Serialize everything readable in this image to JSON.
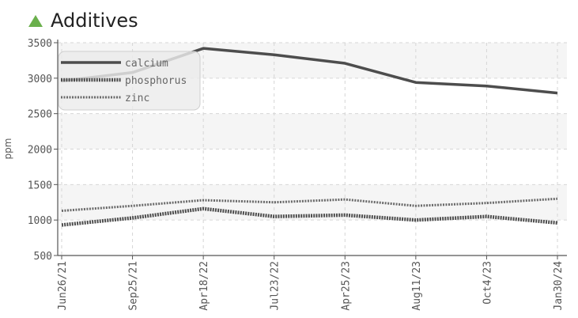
{
  "header": {
    "title": "Additives",
    "arrow_color": "#6ab04c"
  },
  "chart_data": {
    "type": "line",
    "title": "Additives",
    "xlabel": "",
    "ylabel": "ppm",
    "ylim": [
      500,
      3500
    ],
    "yticks": [
      500,
      1000,
      1500,
      2000,
      2500,
      3000,
      3500
    ],
    "categories": [
      "Jun26/21",
      "Sep25/21",
      "Apr18/22",
      "Jul23/22",
      "Apr25/23",
      "Aug11/23",
      "Oct4/23",
      "Jan30/24"
    ],
    "grid": true,
    "legend_position": "top-left",
    "series": [
      {
        "name": "calcium",
        "color": "#4d4d4d",
        "style": "solid",
        "values": [
          2960,
          3080,
          3420,
          3330,
          3210,
          2940,
          2890,
          2790
        ]
      },
      {
        "name": "phosphorus",
        "color": "#4d4d4d",
        "style": "dense-dotted",
        "values": [
          930,
          1030,
          1160,
          1050,
          1070,
          1000,
          1050,
          960
        ]
      },
      {
        "name": "zinc",
        "color": "#6a6a6a",
        "style": "dotted",
        "values": [
          1130,
          1200,
          1280,
          1250,
          1290,
          1200,
          1240,
          1300
        ]
      }
    ]
  }
}
